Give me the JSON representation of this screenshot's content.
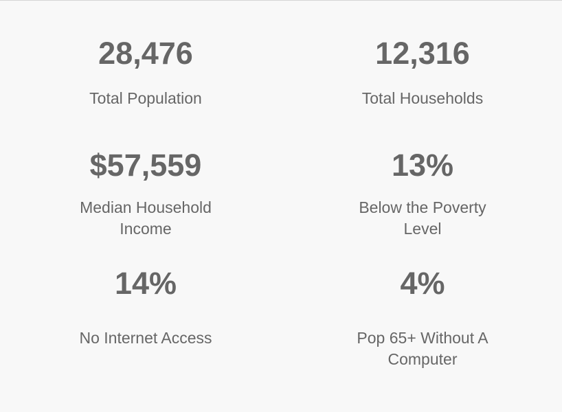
{
  "stats": [
    {
      "value": "28,476",
      "label": "Total Population"
    },
    {
      "value": "12,316",
      "label": "Total Households"
    },
    {
      "value": "$57,559",
      "label": "Median Household Income"
    },
    {
      "value": "13%",
      "label": "Below the Poverty Level"
    },
    {
      "value": "14%",
      "label": "No Internet Access"
    },
    {
      "value": "4%",
      "label": "Pop 65+ Without A Computer"
    }
  ]
}
